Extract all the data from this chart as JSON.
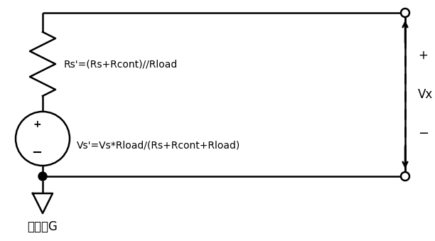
{
  "bg_color": "#ffffff",
  "line_color": "#000000",
  "line_width": 1.8,
  "resistor_label": "Rs'=(Rs+Rcont)//Rload",
  "source_label": "Vs'=Vs*Rload/(Rs+Rcont+Rload)",
  "vx_label": "Vx",
  "gnd_label": "参考地G",
  "plus_label": "+",
  "minus_label": "−",
  "vx_plus": "+",
  "vx_minus": "−",
  "figsize": [
    6.12,
    3.39
  ],
  "dpi": 100
}
